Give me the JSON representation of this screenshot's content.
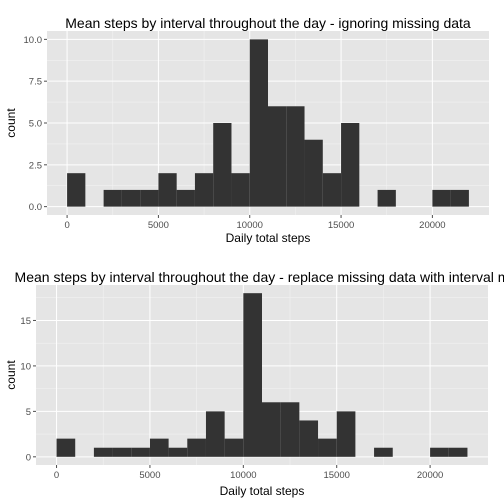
{
  "colors": {
    "panel_background": "#e5e5e5",
    "bar_fill": "#333333",
    "grid_major": "#ffffff",
    "grid_minor": "#f2f2f2",
    "tick_text": "#4d4d4d"
  },
  "chart_data": [
    {
      "type": "bar",
      "title": "Mean steps by interval throughout the day - ignoring missing data",
      "xlabel": "Daily total steps",
      "ylabel": "count",
      "bin_width": 1000,
      "bin_starts": [
        0,
        2000,
        3000,
        4000,
        5000,
        6000,
        7000,
        8000,
        9000,
        10000,
        11000,
        12000,
        13000,
        14000,
        15000,
        17000,
        20000,
        21000
      ],
      "values": [
        2,
        1,
        1,
        1,
        2,
        1,
        2,
        5,
        2,
        10,
        6,
        6,
        4,
        2,
        5,
        1,
        1,
        1
      ],
      "xlim": [
        -1100,
        23100
      ],
      "ylim": [
        -0.5,
        10.5
      ],
      "x_ticks": [
        0,
        5000,
        10000,
        15000,
        20000
      ],
      "x_tick_labels": [
        "0",
        "5000",
        "10000",
        "15000",
        "20000"
      ],
      "y_ticks": [
        0,
        2.5,
        5,
        7.5,
        10
      ],
      "y_tick_labels": [
        "0.0",
        "2.5",
        "5.0",
        "7.5",
        "10.0"
      ],
      "grid": true
    },
    {
      "type": "bar",
      "title": "Mean steps by interval throughout the day - replace missing data with interval m",
      "xlabel": "Daily total steps",
      "ylabel": "count",
      "bin_width": 1000,
      "bin_starts": [
        0,
        2000,
        3000,
        4000,
        5000,
        6000,
        7000,
        8000,
        9000,
        10000,
        11000,
        12000,
        13000,
        14000,
        15000,
        17000,
        20000,
        21000
      ],
      "values": [
        2,
        1,
        1,
        1,
        2,
        1,
        2,
        5,
        2,
        18,
        6,
        6,
        4,
        2,
        5,
        1,
        1,
        1
      ],
      "xlim": [
        -1100,
        23100
      ],
      "ylim": [
        -0.9,
        18.9
      ],
      "x_ticks": [
        0,
        5000,
        10000,
        15000,
        20000
      ],
      "x_tick_labels": [
        "0",
        "5000",
        "10000",
        "15000",
        "20000"
      ],
      "y_ticks": [
        0,
        5,
        10,
        15
      ],
      "y_tick_labels": [
        "0",
        "5",
        "10",
        "15"
      ],
      "grid": true
    }
  ]
}
